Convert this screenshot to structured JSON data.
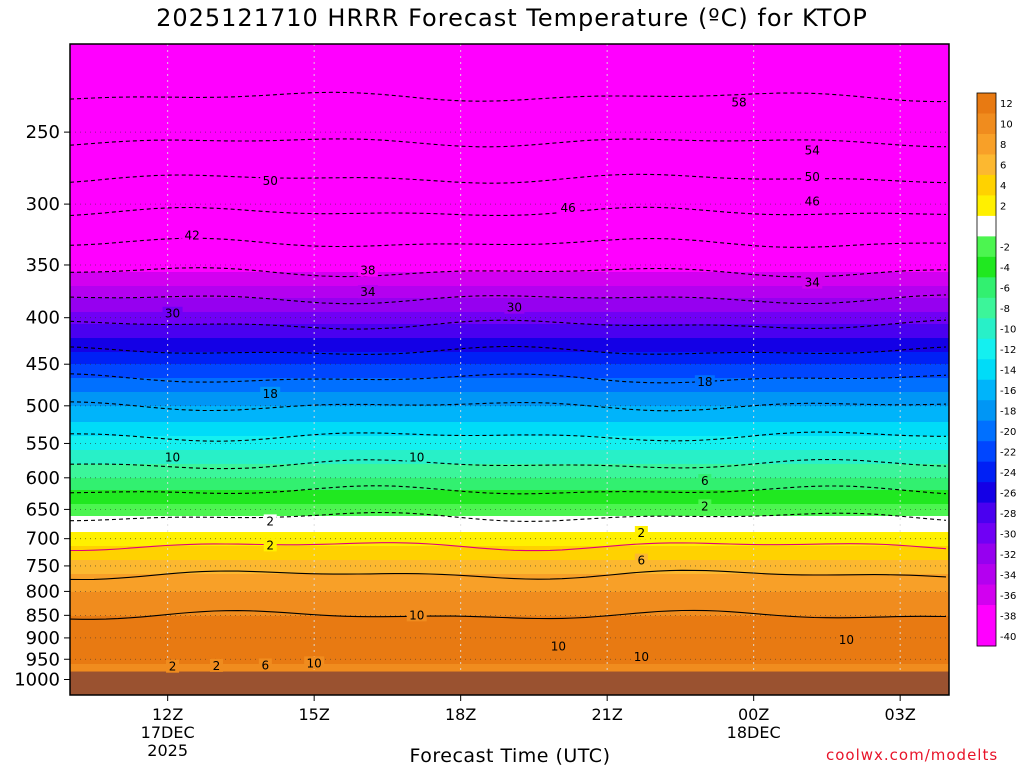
{
  "chart_data": {
    "type": "heatmap",
    "title": "2025121710 HRRR Forecast Temperature (ºC) for KTOP",
    "xlabel": "Forecast Time (UTC)",
    "ylabel": "",
    "credit": "coolwx.com/modelts",
    "x_ticks": [
      {
        "label": "12Z",
        "sub": [
          "17DEC",
          "2025"
        ],
        "hour": 0
      },
      {
        "label": "15Z",
        "sub": [],
        "hour": 3
      },
      {
        "label": "18Z",
        "sub": [],
        "hour": 6
      },
      {
        "label": "21Z",
        "sub": [],
        "hour": 9
      },
      {
        "label": "00Z",
        "sub": [
          "18DEC"
        ],
        "hour": 12
      },
      {
        "label": "03Z",
        "sub": [],
        "hour": 15
      }
    ],
    "xlim_hours": [
      -2,
      16
    ],
    "y_ticks": [
      250,
      300,
      350,
      400,
      450,
      500,
      550,
      600,
      650,
      700,
      750,
      800,
      850,
      900,
      950,
      1000
    ],
    "ylim_hPa": [
      200,
      1040
    ],
    "y_scale": "log",
    "surface_pressure_hPa": 980,
    "colorbar": {
      "levels": [
        {
          "label": "12",
          "color": "#e87a12"
        },
        {
          "label": "10",
          "color": "#f08c1e"
        },
        {
          "label": "8",
          "color": "#f8a028"
        },
        {
          "label": "6",
          "color": "#fcb830"
        },
        {
          "label": "4",
          "color": "#ffd200"
        },
        {
          "label": "2",
          "color": "#fff000"
        },
        {
          "label": "",
          "color": "#ffffff"
        },
        {
          "label": "-2",
          "color": "#4cf550"
        },
        {
          "label": "-4",
          "color": "#20e820"
        },
        {
          "label": "-6",
          "color": "#32f070"
        },
        {
          "label": "-8",
          "color": "#3cf59a"
        },
        {
          "label": "-10",
          "color": "#28f0c8"
        },
        {
          "label": "-12",
          "color": "#14f0f0"
        },
        {
          "label": "-14",
          "color": "#00dcf8"
        },
        {
          "label": "-16",
          "color": "#00b4fa"
        },
        {
          "label": "-18",
          "color": "#0096f5"
        },
        {
          "label": "-20",
          "color": "#0070ff"
        },
        {
          "label": "-22",
          "color": "#0046ff"
        },
        {
          "label": "-24",
          "color": "#0020f5"
        },
        {
          "label": "-26",
          "color": "#1400e6"
        },
        {
          "label": "-28",
          "color": "#4a00f0"
        },
        {
          "label": "-30",
          "color": "#7000f5"
        },
        {
          "label": "-32",
          "color": "#9600f0"
        },
        {
          "label": "-34",
          "color": "#b400f0"
        },
        {
          "label": "-36",
          "color": "#d200f0"
        },
        {
          "label": "-38",
          "color": "#ff00ff"
        },
        {
          "label": "-40",
          "color": "#ff00ff"
        }
      ]
    },
    "temperature_profile": [
      {
        "p": 200,
        "t": -62
      },
      {
        "p": 250,
        "t": -55
      },
      {
        "p": 300,
        "t": -47
      },
      {
        "p": 350,
        "t": -39
      },
      {
        "p": 400,
        "t": -31
      },
      {
        "p": 450,
        "t": -24
      },
      {
        "p": 500,
        "t": -18
      },
      {
        "p": 550,
        "t": -13
      },
      {
        "p": 600,
        "t": -8
      },
      {
        "p": 650,
        "t": -3
      },
      {
        "p": 700,
        "t": 1
      },
      {
        "p": 750,
        "t": 5
      },
      {
        "p": 800,
        "t": 8
      },
      {
        "p": 850,
        "t": 10
      },
      {
        "p": 900,
        "t": 12
      },
      {
        "p": 950,
        "t": 11
      },
      {
        "p": 980,
        "t": 8
      }
    ],
    "contour_labels": [
      {
        "text": "58",
        "hour": 11.7,
        "p": 232
      },
      {
        "text": "54",
        "hour": 13.2,
        "p": 262
      },
      {
        "text": "50",
        "hour": 2.1,
        "p": 283
      },
      {
        "text": "50",
        "hour": 13.2,
        "p": 280
      },
      {
        "text": "46",
        "hour": 8.2,
        "p": 303
      },
      {
        "text": "46",
        "hour": 13.2,
        "p": 298
      },
      {
        "text": "42",
        "hour": 0.5,
        "p": 325
      },
      {
        "text": "38",
        "hour": 4.1,
        "p": 355
      },
      {
        "text": "34",
        "hour": 4.1,
        "p": 375
      },
      {
        "text": "34",
        "hour": 13.2,
        "p": 366
      },
      {
        "text": "30",
        "hour": 0.1,
        "p": 396
      },
      {
        "text": "30",
        "hour": 7.1,
        "p": 390
      },
      {
        "text": "18",
        "hour": 2.1,
        "p": 485
      },
      {
        "text": "18",
        "hour": 11.0,
        "p": 471
      },
      {
        "text": "10",
        "hour": 0.1,
        "p": 570
      },
      {
        "text": "10",
        "hour": 5.1,
        "p": 570
      },
      {
        "text": "6",
        "hour": 11.0,
        "p": 605
      },
      {
        "text": "2",
        "hour": 11.0,
        "p": 645
      },
      {
        "text": "2",
        "hour": 2.1,
        "p": 670
      },
      {
        "text": "2",
        "hour": 2.1,
        "p": 712
      },
      {
        "text": "2",
        "hour": 9.7,
        "p": 690
      },
      {
        "text": "6",
        "hour": 9.7,
        "p": 740
      },
      {
        "text": "10",
        "hour": 5.1,
        "p": 850
      },
      {
        "text": "10",
        "hour": 13.9,
        "p": 905
      },
      {
        "text": "10",
        "hour": 8.0,
        "p": 920
      },
      {
        "text": "10",
        "hour": 9.7,
        "p": 945
      },
      {
        "text": "10",
        "hour": 3.0,
        "p": 960
      },
      {
        "text": "6",
        "hour": 2.0,
        "p": 965
      },
      {
        "text": "2",
        "hour": 1.0,
        "p": 966
      },
      {
        "text": "2",
        "hour": 0.1,
        "p": 968
      }
    ]
  }
}
